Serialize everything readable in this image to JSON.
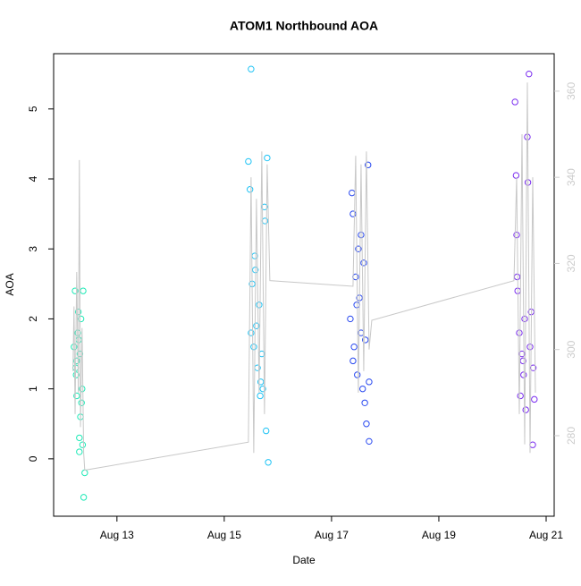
{
  "chart_data": {
    "type": "scatter",
    "title": "ATOM1 Northbound AOA",
    "x_label": "Date",
    "y_label": "AOA",
    "xlim": [
      11.82,
      21.15
    ],
    "xticks": [
      {
        "value": 13,
        "label": "Aug 13"
      },
      {
        "value": 15,
        "label": "Aug 15"
      },
      {
        "value": 17,
        "label": "Aug 17"
      },
      {
        "value": 19,
        "label": "Aug 19"
      },
      {
        "value": 21,
        "label": "Aug 21"
      }
    ],
    "ylim": [
      -0.82,
      5.79
    ],
    "yticks": [
      0,
      1,
      2,
      3,
      4,
      5
    ],
    "y2lim": [
      261.3,
      368.7
    ],
    "y2ticks": [
      280,
      300,
      320,
      340,
      360
    ],
    "y2_color": "#cccccc",
    "series": [
      {
        "color": "#1de9b6",
        "x": [
          12.2,
          12.22,
          12.24,
          12.25,
          12.27,
          12.28,
          12.3,
          12.31,
          12.32,
          12.33,
          12.35,
          12.36,
          12.38,
          12.25,
          12.29,
          12.34,
          12.37,
          12.4,
          12.23,
          12.3
        ],
        "values": [
          1.6,
          2.4,
          1.2,
          0.9,
          1.8,
          2.1,
          0.3,
          1.5,
          0.6,
          2.0,
          1.0,
          0.2,
          -0.55,
          1.4,
          1.7,
          0.8,
          2.4,
          -0.2,
          1.3,
          0.1
        ]
      },
      {
        "color": "#1ec3f5",
        "x": [
          15.45,
          15.48,
          15.5,
          15.52,
          15.55,
          15.57,
          15.6,
          15.62,
          15.65,
          15.67,
          15.7,
          15.72,
          15.75,
          15.78,
          15.8,
          15.5,
          15.58,
          15.68,
          15.76,
          15.82
        ],
        "values": [
          4.25,
          3.85,
          5.57,
          2.5,
          1.6,
          2.9,
          1.9,
          1.3,
          2.2,
          0.9,
          1.5,
          1.0,
          3.6,
          0.4,
          4.3,
          1.8,
          2.7,
          1.1,
          3.4,
          -0.05
        ]
      },
      {
        "color": "#2848f0",
        "x": [
          17.35,
          17.38,
          17.4,
          17.42,
          17.45,
          17.48,
          17.5,
          17.52,
          17.55,
          17.58,
          17.6,
          17.62,
          17.65,
          17.68,
          17.7,
          17.4,
          17.47,
          17.55,
          17.63,
          17.7
        ],
        "values": [
          2.0,
          3.8,
          3.5,
          1.6,
          2.6,
          1.2,
          3.0,
          2.3,
          1.8,
          1.0,
          2.8,
          0.8,
          0.5,
          4.2,
          0.25,
          1.4,
          2.2,
          3.2,
          1.7,
          1.1
        ]
      },
      {
        "color": "#7a2cf0",
        "x": [
          20.42,
          20.44,
          20.45,
          20.47,
          20.5,
          20.52,
          20.55,
          20.58,
          20.6,
          20.62,
          20.65,
          20.68,
          20.7,
          20.72,
          20.75,
          20.78,
          20.46,
          20.57,
          20.66,
          20.76
        ],
        "values": [
          5.1,
          4.05,
          3.2,
          2.4,
          1.8,
          0.9,
          1.5,
          1.2,
          2.0,
          0.7,
          4.6,
          5.5,
          1.6,
          2.1,
          0.2,
          0.85,
          2.6,
          1.4,
          3.95,
          1.3
        ]
      },
      {
        "color": "#c8c8c8",
        "axis": "y2",
        "line": true,
        "x": [
          12.18,
          12.2,
          12.22,
          12.25,
          12.28,
          12.3,
          12.32,
          12.35,
          12.38,
          12.4,
          15.45,
          15.5,
          15.55,
          15.6,
          15.65,
          15.7,
          15.75,
          15.8,
          15.85,
          17.4,
          17.45,
          17.5,
          17.55,
          17.6,
          17.65,
          17.7,
          17.75,
          20.4,
          20.45,
          20.5,
          20.55,
          20.6,
          20.65,
          20.7,
          20.75,
          20.8
        ],
        "values": [
          295,
          310,
          285,
          318,
          290,
          344,
          282,
          305,
          276,
          272,
          278.5,
          340,
          276,
          335,
          290,
          346,
          285,
          343,
          316,
          314.7,
          345,
          290,
          343,
          295,
          346,
          300,
          306.8,
          316,
          340,
          285,
          350,
          278,
          362,
          276,
          340,
          290
        ]
      }
    ]
  }
}
